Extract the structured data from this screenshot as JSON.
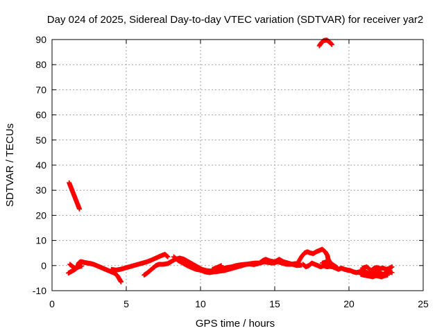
{
  "chart_data": {
    "type": "scatter",
    "title": "Day 024 of 2025, Sidereal Day-to-day VTEC variation (SDTVAR) for receiver yar2",
    "xlabel": "GPS time / hours",
    "ylabel": "SDTVAR / TECUs",
    "xlim": [
      0,
      25
    ],
    "ylim": [
      -10,
      90
    ],
    "xticks": [
      "0",
      "5",
      "10",
      "15",
      "20",
      "25"
    ],
    "yticks": [
      "-10",
      "0",
      "10",
      "20",
      "30",
      "40",
      "50",
      "60",
      "70",
      "80",
      "90"
    ],
    "grid": true,
    "marker": "plus",
    "color": "#ff0000",
    "series": [
      {
        "name": "SDTVAR",
        "points": [
          [
            1.15,
            33
          ],
          [
            1.25,
            31.5
          ],
          [
            1.35,
            30
          ],
          [
            1.45,
            28.5
          ],
          [
            1.55,
            27
          ],
          [
            1.65,
            25.5
          ],
          [
            1.75,
            24
          ],
          [
            1.85,
            22.5
          ],
          [
            18.0,
            87.5
          ],
          [
            18.15,
            88.8
          ],
          [
            18.3,
            89.6
          ],
          [
            18.5,
            89.8
          ],
          [
            18.7,
            89.0
          ],
          [
            18.85,
            88.0
          ],
          [
            1.1,
            -3
          ],
          [
            1.25,
            -2.5
          ],
          [
            1.4,
            -2
          ],
          [
            1.55,
            -1.5
          ],
          [
            1.7,
            -0.5
          ],
          [
            1.8,
            1
          ],
          [
            1.9,
            1.5
          ],
          [
            2.0,
            1.5
          ],
          [
            2.2,
            1.2
          ],
          [
            2.4,
            1.0
          ],
          [
            2.6,
            0.8
          ],
          [
            2.8,
            0.5
          ],
          [
            3.0,
            0
          ],
          [
            3.2,
            -0.5
          ],
          [
            3.4,
            -1
          ],
          [
            3.6,
            -1.5
          ],
          [
            3.8,
            -2
          ],
          [
            4.0,
            -2.5
          ],
          [
            4.2,
            -3
          ],
          [
            4.4,
            -4
          ],
          [
            4.55,
            -5.5
          ],
          [
            4.65,
            -6.5
          ],
          [
            1.2,
            0.5
          ],
          [
            1.4,
            -0.5
          ],
          [
            1.6,
            -1.2
          ],
          [
            1.8,
            -0.5
          ],
          [
            2.0,
            -0.2
          ],
          [
            4.0,
            -1.5
          ],
          [
            4.3,
            -1.8
          ],
          [
            4.6,
            -1.5
          ],
          [
            4.9,
            -1
          ],
          [
            5.2,
            -0.5
          ],
          [
            5.5,
            0
          ],
          [
            5.8,
            0.5
          ],
          [
            6.1,
            1
          ],
          [
            6.4,
            1.5
          ],
          [
            6.7,
            2.2
          ],
          [
            7.0,
            3
          ],
          [
            7.3,
            3.8
          ],
          [
            7.6,
            4.5
          ],
          [
            7.8,
            3.5
          ],
          [
            6.2,
            -3.8
          ],
          [
            6.4,
            -3
          ],
          [
            6.6,
            -2
          ],
          [
            6.8,
            -1
          ],
          [
            7.0,
            0
          ],
          [
            7.2,
            0.5
          ],
          [
            7.5,
            0.5
          ],
          [
            7.8,
            0.8
          ],
          [
            8.0,
            1.5
          ],
          [
            8.3,
            2.5
          ],
          [
            8.6,
            3
          ],
          [
            8.9,
            2.5
          ],
          [
            9.2,
            1.5
          ],
          [
            9.5,
            0.5
          ],
          [
            9.8,
            -0.5
          ],
          [
            10.1,
            -1.5
          ],
          [
            10.4,
            -2
          ],
          [
            10.7,
            -2.2
          ],
          [
            11.0,
            -2.5
          ],
          [
            11.3,
            -2.2
          ],
          [
            11.6,
            -2
          ],
          [
            11.9,
            -1.5
          ],
          [
            12.2,
            -1
          ],
          [
            12.5,
            -0.5
          ],
          [
            12.8,
            0
          ],
          [
            13.1,
            0.5
          ],
          [
            13.4,
            0.8
          ],
          [
            13.7,
            1
          ],
          [
            14.0,
            1
          ],
          [
            14.3,
            1.5
          ],
          [
            14.6,
            1.2
          ],
          [
            14.9,
            1
          ],
          [
            15.2,
            1.5
          ],
          [
            15.5,
            1
          ],
          [
            15.8,
            0.5
          ],
          [
            16.1,
            0.5
          ],
          [
            16.4,
            0.8
          ],
          [
            16.7,
            0.5
          ],
          [
            8.2,
            3.5
          ],
          [
            8.5,
            2
          ],
          [
            8.8,
            1
          ],
          [
            9.1,
            0
          ],
          [
            9.4,
            -0.8
          ],
          [
            9.7,
            -1.5
          ],
          [
            10.0,
            -1.8
          ],
          [
            10.3,
            -2.5
          ],
          [
            10.6,
            -2.8
          ],
          [
            10.9,
            -2.5
          ],
          [
            11.2,
            -1.8
          ],
          [
            11.5,
            -1.2
          ],
          [
            11.8,
            -0.8
          ],
          [
            12.1,
            -0.5
          ],
          [
            12.4,
            0
          ],
          [
            12.7,
            0.3
          ],
          [
            13.0,
            0.5
          ],
          [
            13.3,
            0.6
          ],
          [
            13.6,
            0.4
          ],
          [
            13.9,
            0.8
          ],
          [
            14.2,
            2
          ],
          [
            14.4,
            2.5
          ],
          [
            14.7,
            1.8
          ],
          [
            15.0,
            1.5
          ],
          [
            15.3,
            2.5
          ],
          [
            15.6,
            1.5
          ],
          [
            15.9,
            1
          ],
          [
            16.2,
            0.5
          ],
          [
            16.5,
            0
          ],
          [
            16.8,
            0.2
          ],
          [
            11.4,
            0
          ],
          [
            11.1,
            -0.8
          ],
          [
            10.8,
            -1.5
          ],
          [
            16.6,
            1.5
          ],
          [
            16.8,
            3.5
          ],
          [
            17.0,
            5
          ],
          [
            17.2,
            5.5
          ],
          [
            17.4,
            5
          ],
          [
            17.6,
            4.8
          ],
          [
            17.8,
            5.5
          ],
          [
            18.0,
            6
          ],
          [
            18.2,
            6.5
          ],
          [
            18.4,
            5.5
          ],
          [
            18.55,
            4
          ],
          [
            18.6,
            2.5
          ],
          [
            18.7,
            1.5
          ],
          [
            16.9,
            0.5
          ],
          [
            17.1,
            -0.5
          ],
          [
            17.3,
            0
          ],
          [
            17.5,
            1
          ],
          [
            17.7,
            0.5
          ],
          [
            17.9,
            0
          ],
          [
            18.1,
            -0.5
          ],
          [
            18.3,
            0
          ],
          [
            18.5,
            -0.5
          ],
          [
            18.7,
            -0.3
          ],
          [
            18.9,
            -0.5
          ],
          [
            19.1,
            -1
          ],
          [
            19.3,
            -1.5
          ],
          [
            19.5,
            -1
          ],
          [
            19.7,
            -1.5
          ],
          [
            19.9,
            -1.8
          ],
          [
            20.1,
            -2
          ],
          [
            20.3,
            -2.5
          ],
          [
            20.5,
            -2.8
          ],
          [
            20.7,
            -2.5
          ],
          [
            20.9,
            -2
          ],
          [
            21.1,
            -2.5
          ],
          [
            21.3,
            -3
          ],
          [
            21.5,
            -3.5
          ],
          [
            21.7,
            -3
          ],
          [
            21.9,
            -2.5
          ],
          [
            22.1,
            -3
          ],
          [
            22.3,
            -3.5
          ],
          [
            22.5,
            -3
          ],
          [
            22.7,
            -2.5
          ],
          [
            22.9,
            -2.8
          ],
          [
            20.8,
            -3.5
          ],
          [
            21.0,
            -3.8
          ],
          [
            21.2,
            -4
          ],
          [
            21.4,
            -4.2
          ],
          [
            21.6,
            -4.5
          ],
          [
            21.8,
            -4
          ],
          [
            22.0,
            -4.2
          ],
          [
            22.2,
            -4.5
          ],
          [
            22.4,
            -4
          ],
          [
            22.6,
            -3.8
          ],
          [
            20.9,
            -1
          ],
          [
            21.2,
            -0.5
          ],
          [
            21.5,
            -2
          ],
          [
            21.7,
            -1
          ],
          [
            21.9,
            -0.8
          ],
          [
            22.1,
            -1.2
          ],
          [
            22.3,
            -1
          ],
          [
            22.5,
            -1.5
          ],
          [
            22.7,
            -1.2
          ],
          [
            22.9,
            -0.5
          ],
          [
            18.2,
            1
          ],
          [
            18.5,
            1.5
          ],
          [
            18.8,
            0.8
          ],
          [
            19.0,
            0
          ],
          [
            19.2,
            -0.8
          ]
        ]
      }
    ]
  }
}
